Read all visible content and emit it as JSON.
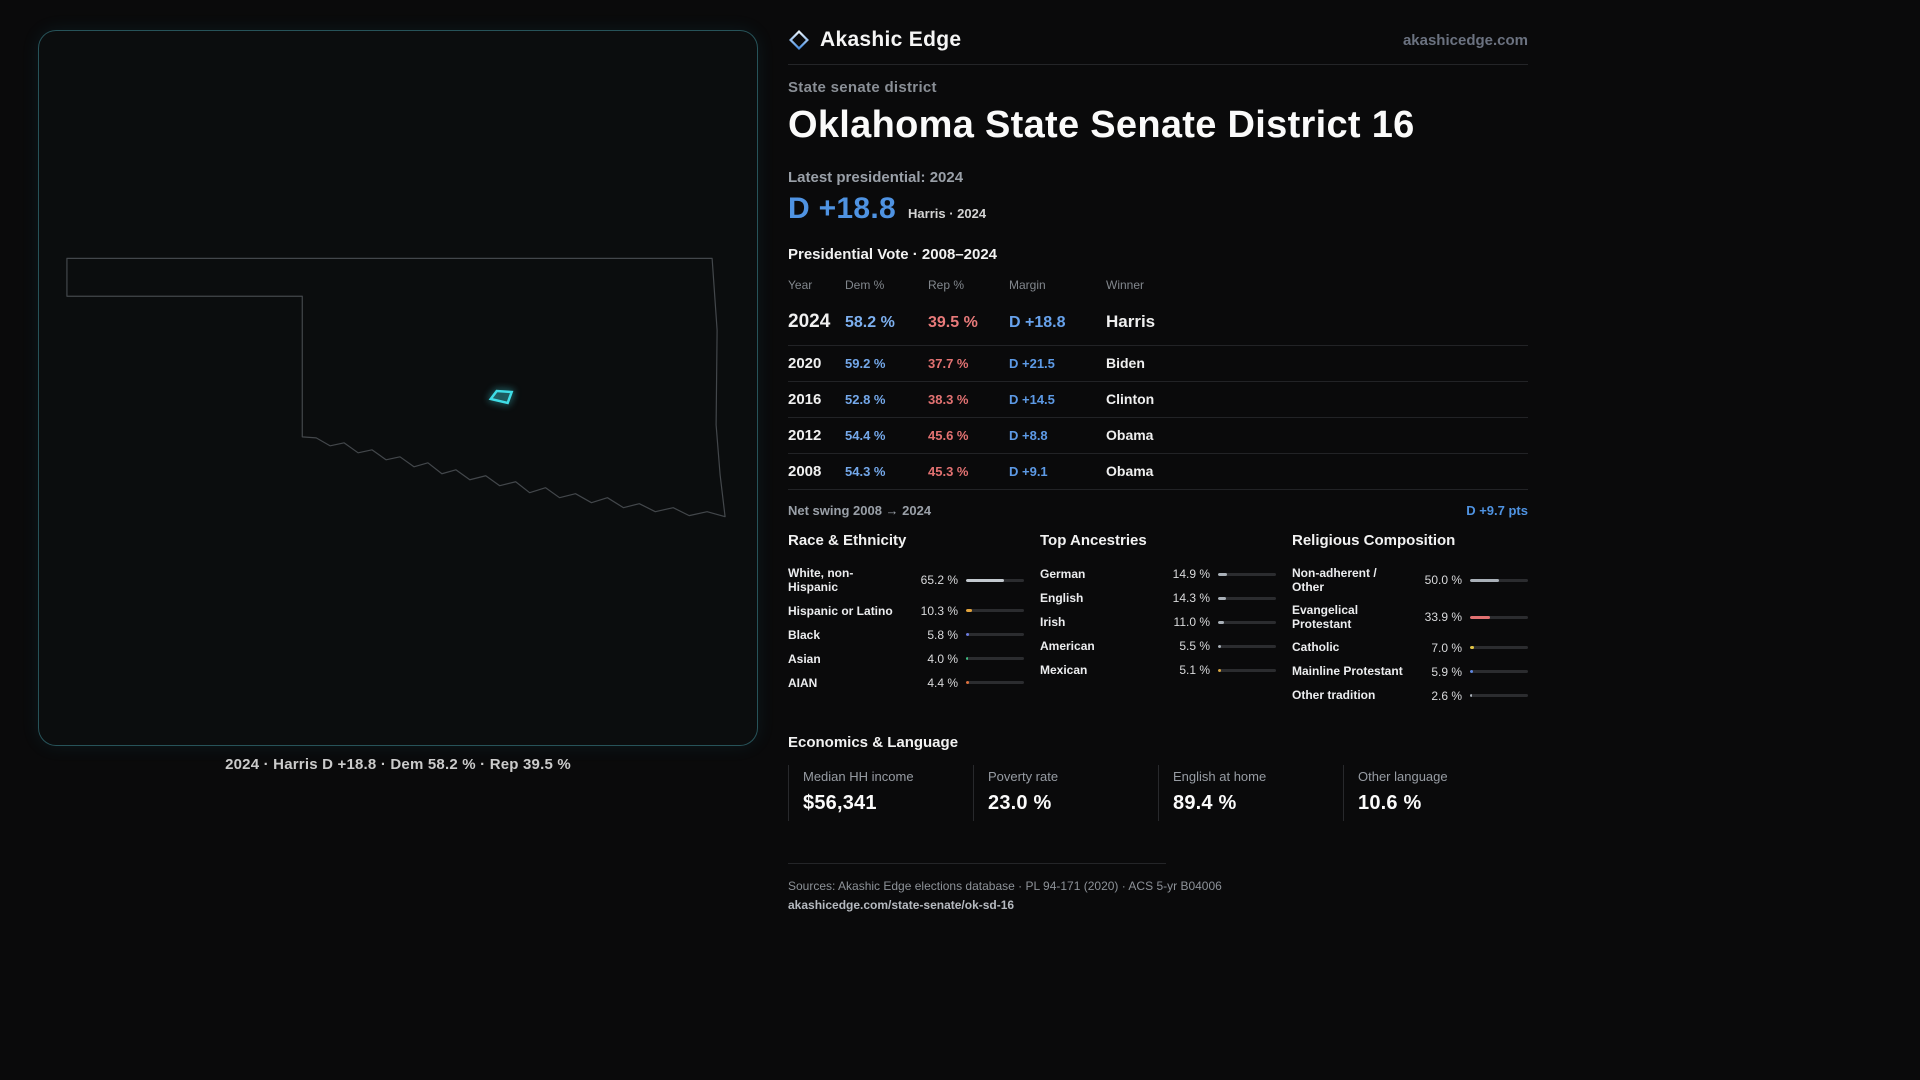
{
  "map": {
    "caption": "2024 · Harris D +18.8 · Dem 58.2 % · Rep 39.5 %",
    "accent_color": "#3fdde6"
  },
  "header": {
    "brand": "Akashic Edge",
    "domain": "akashicedge.com",
    "kicker": "State senate district",
    "title": "Oklahoma State Senate District 16"
  },
  "latest": {
    "label": "Latest presidential: 2024",
    "margin": "D +18.8",
    "detail": "Harris · 2024"
  },
  "colors": {
    "dem_blue": "#4f93e2",
    "rep_red": "#e37272"
  },
  "table": {
    "title": "Presidential Vote · 2008–2024",
    "columns": [
      "Year",
      "Dem %",
      "Rep %",
      "Margin",
      "Winner"
    ],
    "rows": [
      {
        "year": "2024",
        "dem": "58.2 %",
        "rep": "39.5 %",
        "margin": "D +18.8",
        "winner": "Harris"
      },
      {
        "year": "2020",
        "dem": "59.2 %",
        "rep": "37.7 %",
        "margin": "D +21.5",
        "winner": "Biden"
      },
      {
        "year": "2016",
        "dem": "52.8 %",
        "rep": "38.3 %",
        "margin": "D +14.5",
        "winner": "Clinton"
      },
      {
        "year": "2012",
        "dem": "54.4 %",
        "rep": "45.6 %",
        "margin": "D +8.8",
        "winner": "Obama"
      },
      {
        "year": "2008",
        "dem": "54.3 %",
        "rep": "45.3 %",
        "margin": "D +9.1",
        "winner": "Obama"
      }
    ]
  },
  "chart_data": {
    "type": "table",
    "title": "Presidential Vote · 2008–2024",
    "categories": [
      "2024",
      "2020",
      "2016",
      "2012",
      "2008"
    ],
    "series": [
      {
        "name": "Dem %",
        "values": [
          58.2,
          59.2,
          52.8,
          54.4,
          54.3
        ]
      },
      {
        "name": "Rep %",
        "values": [
          39.5,
          37.7,
          38.3,
          45.6,
          45.3
        ]
      },
      {
        "name": "Margin D+",
        "values": [
          18.8,
          21.5,
          14.5,
          8.8,
          9.1
        ]
      }
    ],
    "winners": [
      "Harris",
      "Biden",
      "Clinton",
      "Obama",
      "Obama"
    ]
  },
  "swing": {
    "label": "Net swing 2008 → 2024",
    "value": "D +9.7 pts"
  },
  "demographics": [
    {
      "title": "Race & Ethnicity",
      "rows": [
        {
          "label": "White, non-Hispanic",
          "value": "65.2 %",
          "pct": 65.2,
          "color": "#c3c9cf"
        },
        {
          "label": "Hispanic or Latino",
          "value": "10.3 %",
          "pct": 10.3,
          "color": "#e2a33c"
        },
        {
          "label": "Black",
          "value": "5.8 %",
          "pct": 5.8,
          "color": "#6b7ae0"
        },
        {
          "label": "Asian",
          "value": "4.0 %",
          "pct": 4.0,
          "color": "#3fbd82"
        },
        {
          "label": "AIAN",
          "value": "4.4 %",
          "pct": 4.4,
          "color": "#e0703c"
        }
      ]
    },
    {
      "title": "Top Ancestries",
      "rows": [
        {
          "label": "German",
          "value": "14.9 %",
          "pct": 14.9,
          "color": "#a9b0b8"
        },
        {
          "label": "English",
          "value": "14.3 %",
          "pct": 14.3,
          "color": "#a9b0b8"
        },
        {
          "label": "Irish",
          "value": "11.0 %",
          "pct": 11.0,
          "color": "#a9b0b8"
        },
        {
          "label": "American",
          "value": "5.5 %",
          "pct": 5.5,
          "color": "#a9b0b8"
        },
        {
          "label": "Mexican",
          "value": "5.1 %",
          "pct": 5.1,
          "color": "#d9a63f"
        }
      ]
    },
    {
      "title": "Religious Composition",
      "rows": [
        {
          "label": "Non-adherent / Other",
          "value": "50.0 %",
          "pct": 50.0,
          "color": "#a9b0b8"
        },
        {
          "label": "Evangelical Protestant",
          "value": "33.9 %",
          "pct": 33.9,
          "color": "#e07070"
        },
        {
          "label": "Catholic",
          "value": "7.0 %",
          "pct": 7.0,
          "color": "#e0c344"
        },
        {
          "label": "Mainline Protestant",
          "value": "5.9 %",
          "pct": 5.9,
          "color": "#5f86e0"
        },
        {
          "label": "Other tradition",
          "value": "2.6 %",
          "pct": 2.6,
          "color": "#a9b0b8"
        }
      ]
    }
  ],
  "economics": {
    "title": "Economics & Language",
    "stats": [
      {
        "label": "Median HH income",
        "value": "$56,341"
      },
      {
        "label": "Poverty rate",
        "value": "23.0 %"
      },
      {
        "label": "English at home",
        "value": "89.4 %"
      },
      {
        "label": "Other language",
        "value": "10.6 %"
      }
    ]
  },
  "footer": {
    "sources": "Sources: Akashic Edge elections database · PL 94-171 (2020) · ACS 5-yr B04006",
    "permalink": "akashicedge.com/state-senate/ok-sd-16"
  }
}
